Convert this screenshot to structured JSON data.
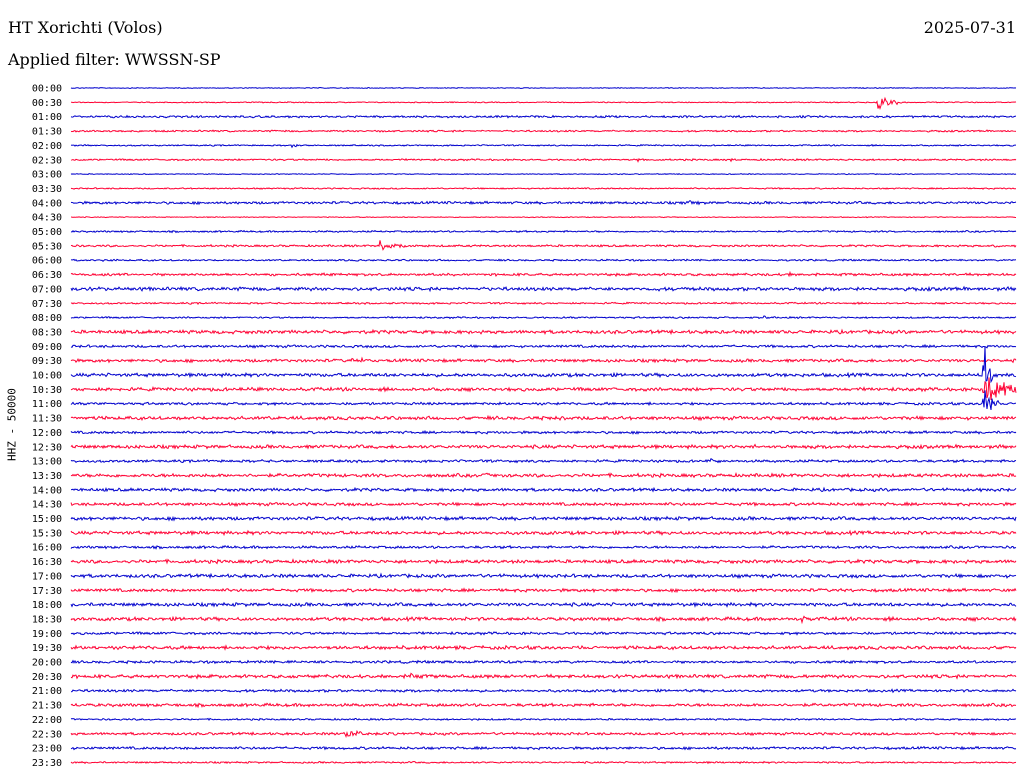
{
  "header": {
    "station": "HT Xorichti (Volos)",
    "date": "2025-07-31",
    "filter": "Applied filter: WWSSN-SP",
    "channel_label": "HHZ - 50000"
  },
  "chart_data": {
    "type": "line",
    "title": "HT Xorichti (Volos)",
    "subtitle": "Applied filter: WWSSN-SP",
    "ylabel": "HHZ - 50000",
    "xlabel": "",
    "colors": [
      "#0000cc",
      "#ff0033"
    ],
    "rows": [
      "00:00",
      "00:30",
      "01:00",
      "01:30",
      "02:00",
      "02:30",
      "03:00",
      "03:30",
      "04:00",
      "04:30",
      "05:00",
      "05:30",
      "06:00",
      "06:30",
      "07:00",
      "07:30",
      "08:00",
      "08:30",
      "09:00",
      "09:30",
      "10:00",
      "10:30",
      "11:00",
      "11:30",
      "12:00",
      "12:30",
      "13:00",
      "13:30",
      "14:00",
      "14:30",
      "15:00",
      "15:30",
      "16:00",
      "16:30",
      "17:00",
      "17:30",
      "18:00",
      "18:30",
      "19:00",
      "19:30",
      "20:00",
      "20:30",
      "21:00",
      "21:30",
      "22:00",
      "22:30",
      "23:00",
      "23:30"
    ],
    "noise_levels": [
      0.5,
      0.6,
      1.2,
      1.0,
      0.8,
      1.0,
      0.5,
      0.8,
      1.5,
      0.5,
      1.0,
      1.2,
      1.0,
      1.5,
      2.0,
      1.0,
      1.0,
      2.0,
      1.5,
      1.8,
      2.0,
      2.0,
      1.5,
      2.0,
      1.5,
      2.0,
      1.5,
      2.0,
      1.8,
      1.8,
      2.0,
      2.0,
      1.5,
      2.0,
      2.0,
      1.8,
      2.0,
      2.0,
      1.5,
      2.0,
      1.5,
      2.0,
      1.5,
      1.8,
      1.0,
      1.5,
      1.5,
      1.0
    ],
    "events": [
      {
        "row": 1,
        "minute": 25.6,
        "amp": 12,
        "dur": 0.8
      },
      {
        "row": 3,
        "minute": 9.7,
        "amp": 3,
        "dur": 0.5
      },
      {
        "row": 4,
        "minute": 7.0,
        "amp": 4,
        "dur": 0.5
      },
      {
        "row": 5,
        "minute": 18.0,
        "amp": 3,
        "dur": 0.3
      },
      {
        "row": 5,
        "minute": 20.9,
        "amp": 3,
        "dur": 0.4
      },
      {
        "row": 8,
        "minute": 19.6,
        "amp": 3,
        "dur": 0.5
      },
      {
        "row": 11,
        "minute": 9.8,
        "amp": 8,
        "dur": 1.5
      },
      {
        "row": 11,
        "minute": 29.3,
        "amp": 3,
        "dur": 0.4
      },
      {
        "row": 12,
        "minute": 1.0,
        "amp": 2,
        "dur": 0.4
      },
      {
        "row": 13,
        "minute": 12.1,
        "amp": 3,
        "dur": 0.4
      },
      {
        "row": 13,
        "minute": 22.8,
        "amp": 3,
        "dur": 0.4
      },
      {
        "row": 16,
        "minute": 22.0,
        "amp": 3,
        "dur": 0.3
      },
      {
        "row": 19,
        "minute": 8.9,
        "amp": 5,
        "dur": 1.2
      },
      {
        "row": 20,
        "minute": 29.0,
        "amp": 42,
        "dur": 0.3
      },
      {
        "row": 21,
        "minute": 29.0,
        "amp": 30,
        "dur": 1.2
      },
      {
        "row": 22,
        "minute": 29.0,
        "amp": 24,
        "dur": 0.5
      },
      {
        "row": 23,
        "minute": 15.5,
        "amp": 4,
        "dur": 0.3
      },
      {
        "row": 25,
        "minute": 21.7,
        "amp": 3,
        "dur": 0.3
      },
      {
        "row": 26,
        "minute": 20.3,
        "amp": 3,
        "dur": 0.3
      },
      {
        "row": 27,
        "minute": 13.2,
        "amp": 4,
        "dur": 0.6
      },
      {
        "row": 37,
        "minute": 23.2,
        "amp": 5,
        "dur": 0.3
      },
      {
        "row": 41,
        "minute": 10.7,
        "amp": 7,
        "dur": 0.4
      },
      {
        "row": 42,
        "minute": 11.9,
        "amp": 2,
        "dur": 0.3
      },
      {
        "row": 45,
        "minute": 8.7,
        "amp": 5,
        "dur": 1.8
      }
    ]
  }
}
